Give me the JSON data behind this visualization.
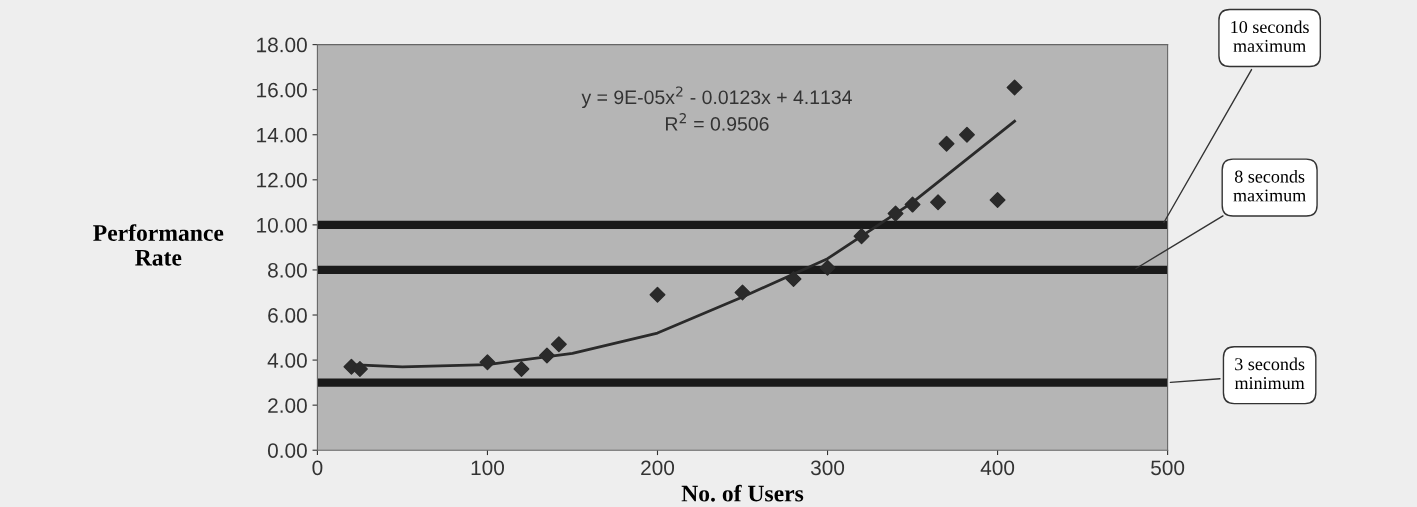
{
  "chart_data": {
    "type": "scatter",
    "xlabel": "No. of Users",
    "ylabel": "Performance\nRate",
    "xlim": [
      0,
      500
    ],
    "xticks": [
      0,
      100,
      200,
      300,
      400,
      500
    ],
    "ylim": [
      0,
      18
    ],
    "yticks": [
      {
        "value": 0,
        "label": "0.00"
      },
      {
        "value": 2,
        "label": "2.00"
      },
      {
        "value": 4,
        "label": "4.00"
      },
      {
        "value": 6,
        "label": "6.00"
      },
      {
        "value": 8,
        "label": "8.00"
      },
      {
        "value": 10,
        "label": "10.00"
      },
      {
        "value": 12,
        "label": "12.00"
      },
      {
        "value": 14,
        "label": "14.00"
      },
      {
        "value": 16,
        "label": "16.00"
      },
      {
        "value": 18,
        "label": "18.00"
      }
    ],
    "marker": "diamond",
    "grid": false,
    "series": [
      {
        "color": "#2a2a2a",
        "x": [
          20,
          25,
          100,
          120,
          135,
          142,
          200,
          250,
          280,
          300,
          320,
          340,
          350,
          365,
          370,
          382,
          400,
          410
        ],
        "values": [
          3.7,
          3.6,
          3.9,
          3.6,
          4.2,
          4.7,
          6.9,
          7.0,
          7.6,
          8.1,
          9.5,
          10.5,
          10.9,
          11.0,
          13.6,
          14.0,
          11.1,
          16.1
        ]
      },
      {
        "type": "line",
        "color": "#2a2a2a",
        "marker": "none",
        "x": [
          20,
          50,
          100,
          150,
          200,
          250,
          300,
          350,
          410
        ],
        "values": [
          3.8,
          3.7,
          3.8,
          4.3,
          5.2,
          6.8,
          8.5,
          11.0,
          14.6
        ]
      }
    ],
    "ref_lines": [
      {
        "axis": "y",
        "value": 10,
        "label": "10 seconds\nmaximum",
        "color": "#1a1a1a"
      },
      {
        "axis": "y",
        "value": 8,
        "label": "8 seconds\nmaximum",
        "color": "#1a1a1a"
      },
      {
        "axis": "y",
        "value": 3,
        "label": "3 seconds\nminimum",
        "color": "#1a1a1a"
      }
    ],
    "annotations": [
      "y = 9E-05x$^{2}$ - 0.0123x + 4.1134",
      "R$^{2}$ = 0.9506"
    ]
  }
}
